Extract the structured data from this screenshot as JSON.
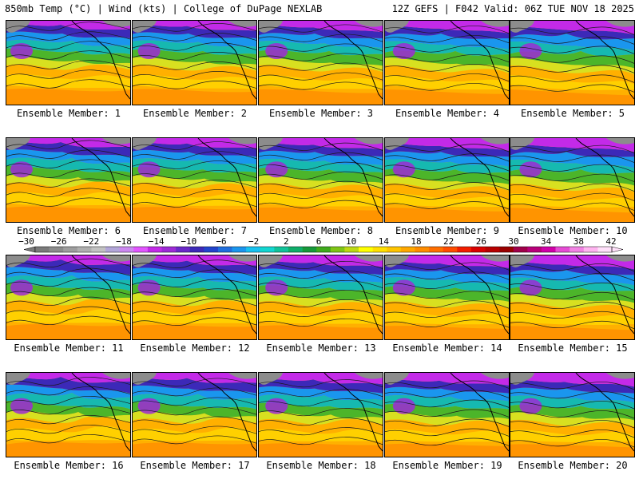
{
  "header": {
    "left": "850mb Temp (°C) | Wind (kts) | College of DuPage NEXLAB",
    "right": "12Z GEFS | F042 Valid: 06Z TUE NOV 18 2025"
  },
  "panel_label_prefix": "Ensemble Member:",
  "members": [
    "Ensemble Member: 1",
    "Ensemble Member: 2",
    "Ensemble Member: 3",
    "Ensemble Member: 4",
    "Ensemble Member: 5",
    "Ensemble Member: 6",
    "Ensemble Member: 7",
    "Ensemble Member: 8",
    "Ensemble Member: 9",
    "Ensemble Member: 10",
    "Ensemble Member: 11",
    "Ensemble Member: 12",
    "Ensemble Member: 13",
    "Ensemble Member: 14",
    "Ensemble Member: 15",
    "Ensemble Member: 16",
    "Ensemble Member: 17",
    "Ensemble Member: 18",
    "Ensemble Member: 19",
    "Ensemble Member: 20"
  ],
  "colorbar": {
    "labels": [
      "−30",
      "−26",
      "−22",
      "−18",
      "−14",
      "−10",
      "−6",
      "−2",
      "2",
      "6",
      "10",
      "14",
      "18",
      "22",
      "26",
      "30",
      "34",
      "38",
      "42"
    ],
    "colors": [
      "#7a7a7a",
      "#8c8c8c",
      "#9e9e9e",
      "#b0b0b0",
      "#c2c2c2",
      "#b3a7d9",
      "#cc88f0",
      "#e255ff",
      "#c32ae8",
      "#9d2ad6",
      "#6a28c8",
      "#3c29b8",
      "#2244cc",
      "#1f6edd",
      "#1a96ee",
      "#17c2f0",
      "#12d6d0",
      "#10c39a",
      "#0fae6a",
      "#16993a",
      "#3faa1c",
      "#7fc516",
      "#bcd914",
      "#ffff00",
      "#ffe000",
      "#ffc400",
      "#ffa800",
      "#ff8c00",
      "#ff6e00",
      "#ff4c00",
      "#f21d00",
      "#d90000",
      "#b80000",
      "#9a0000",
      "#a0004a",
      "#b8007a",
      "#d000a8",
      "#e64bd4",
      "#f283e4",
      "#ffb4f0",
      "#ffe0fa"
    ]
  }
}
